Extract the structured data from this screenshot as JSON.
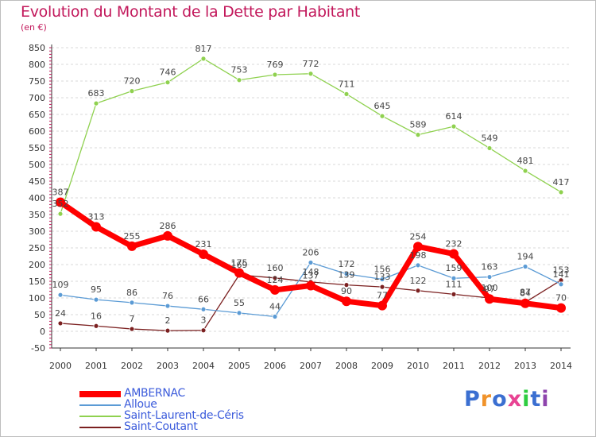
{
  "title": "Evolution du Montant de la Dette par Habitant",
  "unit_label": "(en €)",
  "logo": {
    "text": "Proxiti",
    "letter_colors": [
      "#3b6fd1",
      "#f0932b",
      "#3b6fd1",
      "#e84393",
      "#2ecc40",
      "#3b6fd1",
      "#8e44ad"
    ]
  },
  "chart_data": {
    "type": "line",
    "title": "Evolution du Montant de la Dette par Habitant",
    "ylabel": "(en €)",
    "xlabel": "",
    "x": [
      "2000",
      "2001",
      "2002",
      "2003",
      "2004",
      "2005",
      "2006",
      "2007",
      "2008",
      "2009",
      "2010",
      "2011",
      "2012",
      "2013",
      "2014"
    ],
    "ylim": [
      -50,
      850
    ],
    "yticks": [
      "-50",
      "0",
      "50",
      "100",
      "150",
      "200",
      "250",
      "300",
      "350",
      "400",
      "450",
      "500",
      "550",
      "600",
      "650",
      "700",
      "750",
      "800",
      "850"
    ],
    "grid": "horizontal dashed",
    "legend_position": "bottom-left",
    "series": [
      {
        "name": "AMBERNAC",
        "color": "#ff0000",
        "values": [
          387,
          313,
          255,
          286,
          231,
          175,
          124,
          137,
          90,
          77,
          254,
          232,
          97,
          84,
          70
        ],
        "labels": [
          "387",
          "313",
          "255",
          "286",
          "231",
          "175",
          "124",
          "137",
          "90",
          "77",
          "254",
          "232",
          "97",
          "84",
          "70"
        ]
      },
      {
        "name": "Alloue",
        "color": "#5b9bd5",
        "values": [
          109,
          95,
          86,
          76,
          66,
          55,
          44,
          206,
          172,
          156,
          198,
          159,
          163,
          194,
          141
        ],
        "labels": [
          "109",
          "95",
          "86",
          "76",
          "66",
          "55",
          "44",
          "206",
          "172",
          "156",
          "198",
          "159",
          "163",
          "194",
          "141"
        ]
      },
      {
        "name": "Saint-Laurent-de-Céris",
        "color": "#8fd14f",
        "values": [
          352,
          683,
          720,
          746,
          817,
          753,
          769,
          772,
          711,
          645,
          589,
          614,
          549,
          481,
          417
        ],
        "labels": [
          "352",
          "683",
          "720",
          "746",
          "817",
          "753",
          "769",
          "772",
          "711",
          "645",
          "589",
          "614",
          "549",
          "481",
          "417"
        ]
      },
      {
        "name": "Saint-Coutant",
        "color": "#7b2020",
        "values": [
          24,
          16,
          7,
          2,
          3,
          169,
          160,
          148,
          139,
          133,
          122,
          111,
          100,
          87,
          153
        ],
        "labels": [
          "24",
          "16",
          "7",
          "2",
          "3",
          "169",
          "160",
          "148",
          "139",
          "133",
          "122",
          "111",
          "100",
          "87",
          "153"
        ]
      }
    ]
  }
}
